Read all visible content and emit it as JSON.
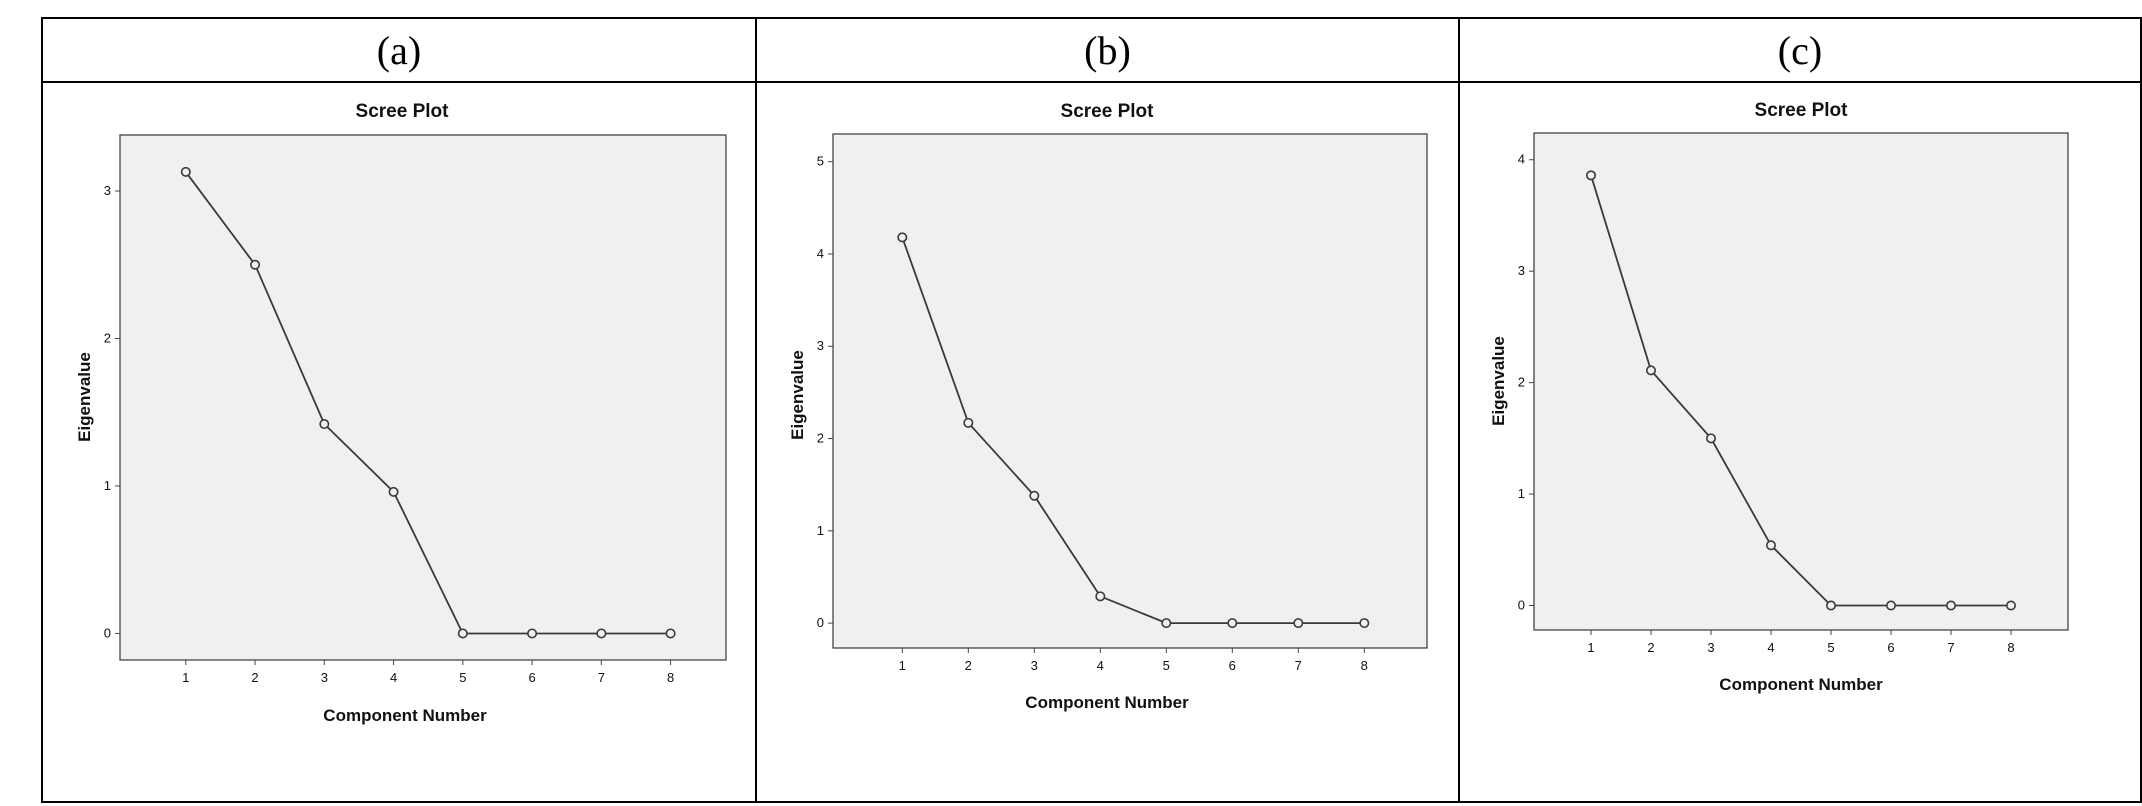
{
  "panels": [
    {
      "label": "(a)"
    },
    {
      "label": "(b)"
    },
    {
      "label": "(c)"
    }
  ],
  "chart_data": [
    {
      "type": "line",
      "title": "Scree Plot",
      "xlabel": "Component Number",
      "ylabel": "Eigenvalue",
      "x": [
        1,
        2,
        3,
        4,
        5,
        6,
        7,
        8
      ],
      "y": [
        3.13,
        2.5,
        1.42,
        0.96,
        0.0,
        0.0,
        0.0,
        0.0
      ],
      "xlim": [
        0.05,
        8.8
      ],
      "ylim": [
        -0.18,
        3.38
      ],
      "yticks": [
        0,
        1,
        2,
        3
      ],
      "grid": false,
      "marker": "circle",
      "colors": {
        "background": "#f0f0f0",
        "line": "#3a3a3a"
      }
    },
    {
      "type": "line",
      "title": "Scree Plot",
      "xlabel": "Component Number",
      "ylabel": "Eigenvalue",
      "x": [
        1,
        2,
        3,
        4,
        5,
        6,
        7,
        8
      ],
      "y": [
        4.18,
        2.17,
        1.38,
        0.29,
        0.0,
        0.0,
        0.0,
        0.0
      ],
      "xlim": [
        -0.05,
        8.95
      ],
      "ylim": [
        -0.27,
        5.3
      ],
      "yticks": [
        0,
        1,
        2,
        3,
        4,
        5
      ],
      "grid": false,
      "marker": "circle",
      "colors": {
        "background": "#f0f0f0",
        "line": "#3a3a3a"
      }
    },
    {
      "type": "line",
      "title": "Scree Plot",
      "xlabel": "Component Number",
      "ylabel": "Eigenvalue",
      "x": [
        1,
        2,
        3,
        4,
        5,
        6,
        7,
        8
      ],
      "y": [
        3.86,
        2.11,
        1.5,
        0.54,
        0.0,
        0.0,
        0.0,
        0.0
      ],
      "xlim": [
        0.05,
        8.95
      ],
      "ylim": [
        -0.22,
        4.24
      ],
      "yticks": [
        0,
        1,
        2,
        3,
        4
      ],
      "grid": false,
      "marker": "circle",
      "colors": {
        "background": "#f0f0f0",
        "line": "#3a3a3a"
      }
    }
  ]
}
